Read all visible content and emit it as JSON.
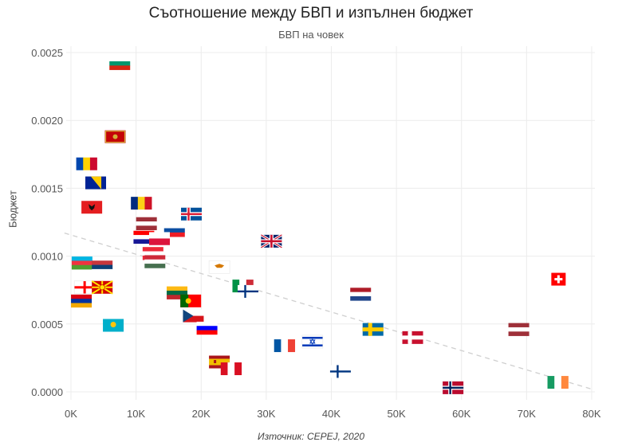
{
  "chart_data": {
    "type": "scatter",
    "title": "Съотношение между БВП и изпълнен бюджет",
    "subtitle": "БВП на човек",
    "ylabel": "Бюджет",
    "source": "Източник: CEPEJ, 2020",
    "xlim": [
      0,
      80000
    ],
    "ylim": [
      0,
      0.0025
    ],
    "x_ticks": [
      {
        "value": 0,
        "label": "0K"
      },
      {
        "value": 10000,
        "label": "10K"
      },
      {
        "value": 20000,
        "label": "20K"
      },
      {
        "value": 30000,
        "label": "30K"
      },
      {
        "value": 40000,
        "label": "40K"
      },
      {
        "value": 50000,
        "label": "50K"
      },
      {
        "value": 60000,
        "label": "60K"
      },
      {
        "value": 70000,
        "label": "70K"
      },
      {
        "value": 80000,
        "label": "80K"
      }
    ],
    "y_ticks": [
      {
        "value": 0,
        "label": "0.0000"
      },
      {
        "value": 0.0005,
        "label": "0.0005"
      },
      {
        "value": 0.001,
        "label": "0.0010"
      },
      {
        "value": 0.0015,
        "label": "0.0015"
      },
      {
        "value": 0.002,
        "label": "0.0020"
      },
      {
        "value": 0.0025,
        "label": "0.0025"
      }
    ],
    "grid": true,
    "trendline": {
      "x": [
        -1000,
        80000
      ],
      "y": [
        0.00117,
        2e-05
      ]
    },
    "points": [
      {
        "icon": "bulgaria-flag",
        "x": 7500,
        "y": 0.00242
      },
      {
        "icon": "montenegro-flag",
        "x": 6800,
        "y": 0.00188
      },
      {
        "icon": "moldova-flag",
        "x": 2400,
        "y": 0.00168
      },
      {
        "icon": "bosnia-flag",
        "x": 3800,
        "y": 0.00154
      },
      {
        "icon": "albania-flag",
        "x": 3200,
        "y": 0.00136
      },
      {
        "icon": "romania-flag",
        "x": 10800,
        "y": 0.00139
      },
      {
        "icon": "iceland-flag",
        "x": 18500,
        "y": 0.00131
      },
      {
        "icon": "latvia-flag",
        "x": 11600,
        "y": 0.00124
      },
      {
        "icon": "slovakia-flag",
        "x": 15900,
        "y": 0.00119
      },
      {
        "icon": "croatia-flag",
        "x": 11200,
        "y": 0.00114
      },
      {
        "icon": "poland-flag",
        "x": 13600,
        "y": 0.00113
      },
      {
        "icon": "united-kingdom-flag",
        "x": 30800,
        "y": 0.00111
      },
      {
        "icon": "austria-flag",
        "x": 12600,
        "y": 0.00102
      },
      {
        "icon": "hungary-flag",
        "x": 12900,
        "y": 0.00096
      },
      {
        "icon": "azerbaijan-flag",
        "x": 1700,
        "y": 0.00095
      },
      {
        "icon": "serbia-flag",
        "x": 4800,
        "y": 0.00092
      },
      {
        "icon": "cyprus-flag",
        "x": 22800,
        "y": 0.00092
      },
      {
        "icon": "switzerland-flag",
        "x": 74900,
        "y": 0.00083
      },
      {
        "icon": "georgia-flag",
        "x": 2100,
        "y": 0.00077
      },
      {
        "icon": "macedonia-flag",
        "x": 4800,
        "y": 0.00077
      },
      {
        "icon": "italy-flag",
        "x": 26400,
        "y": 0.00078
      },
      {
        "icon": "finland-flag",
        "x": 27200,
        "y": 0.00074
      },
      {
        "icon": "netherlands-flag",
        "x": 44500,
        "y": 0.00072
      },
      {
        "icon": "lithuania-flag",
        "x": 16300,
        "y": 0.00073
      },
      {
        "icon": "portugal-flag",
        "x": 18400,
        "y": 0.00067
      },
      {
        "icon": "armenia-flag",
        "x": 1600,
        "y": 0.00067
      },
      {
        "icon": "czechia-flag",
        "x": 18800,
        "y": 0.00056
      },
      {
        "icon": "kazakhstan-flag",
        "x": 6500,
        "y": 0.00049
      },
      {
        "icon": "slovenia-flag",
        "x": 20900,
        "y": 0.00047
      },
      {
        "icon": "sweden-flag",
        "x": 46400,
        "y": 0.00046
      },
      {
        "icon": "latvia-flag",
        "x": 68800,
        "y": 0.00046
      },
      {
        "icon": "denmark-flag",
        "x": 52500,
        "y": 0.0004
      },
      {
        "icon": "israel-flag",
        "x": 37100,
        "y": 0.00037
      },
      {
        "icon": "france-flag",
        "x": 32800,
        "y": 0.00034
      },
      {
        "icon": "spain-flag",
        "x": 22800,
        "y": 0.00022
      },
      {
        "icon": "peru-flag",
        "x": 24600,
        "y": 0.00017
      },
      {
        "icon": "finland-flag",
        "x": 41400,
        "y": 0.00015
      },
      {
        "icon": "ireland-flag",
        "x": 74800,
        "y": 7e-05
      },
      {
        "icon": "norway-flag",
        "x": 58700,
        "y": 3e-05
      }
    ]
  }
}
